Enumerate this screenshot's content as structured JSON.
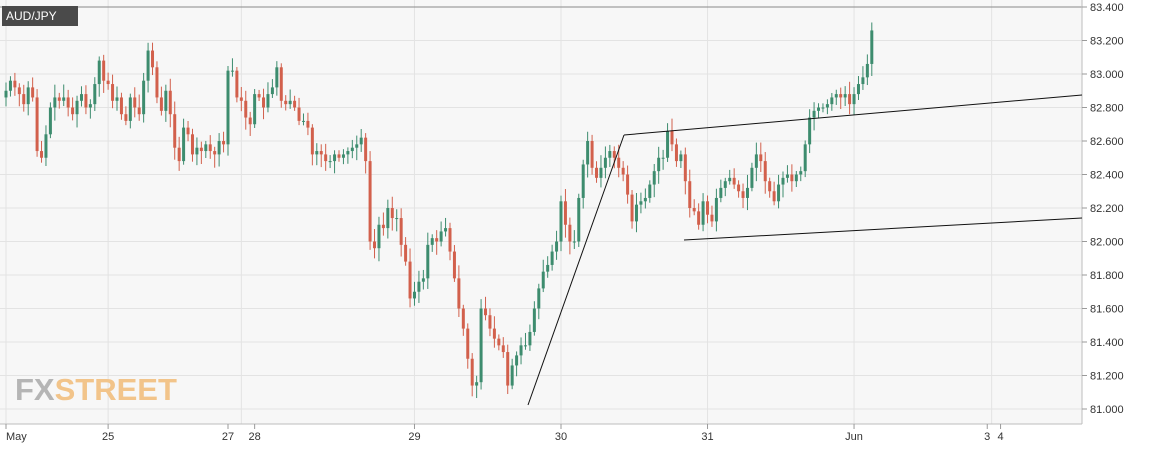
{
  "symbol": "AUD/JPY",
  "logo": {
    "part1": "FX",
    "part2": "STREET"
  },
  "colors": {
    "up": "#3d8c6e",
    "down": "#d2604c",
    "grid": "#e3e3e3",
    "plot_bg": "#f7f7f7",
    "axis_text": "#333333",
    "trend": "#111111"
  },
  "chart_data": {
    "type": "candlestick",
    "title": "AUD/JPY",
    "x_tick_labels": [
      {
        "label": "May",
        "index": 0
      },
      {
        "label": "25",
        "index": 23
      },
      {
        "label": "27",
        "index": 50
      },
      {
        "label": "28",
        "index": 56
      },
      {
        "label": "29",
        "index": 92
      },
      {
        "label": "30",
        "index": 125
      },
      {
        "label": "31",
        "index": 158
      },
      {
        "label": "Jun",
        "index": 191
      },
      {
        "label": "3",
        "index": 221
      },
      {
        "label": "4",
        "index": 224
      }
    ],
    "y_ticks": [
      81.0,
      81.2,
      81.4,
      81.6,
      81.8,
      82.0,
      82.2,
      82.4,
      82.6,
      82.8,
      83.0,
      83.2,
      83.4
    ],
    "y_tick_labels": [
      "81.000",
      "81.200",
      "81.400",
      "81.600",
      "81.800",
      "82.000",
      "82.200",
      "82.400",
      "82.600",
      "82.800",
      "83.000",
      "83.200",
      "83.400"
    ],
    "ylim": [
      80.95,
      83.42
    ],
    "grid": true,
    "closes": [
      82.9,
      82.96,
      82.92,
      82.88,
      82.82,
      82.92,
      82.86,
      82.54,
      82.5,
      82.64,
      82.8,
      82.86,
      82.84,
      82.86,
      82.8,
      82.76,
      82.84,
      82.88,
      82.8,
      82.82,
      82.94,
      83.08,
      82.96,
      82.94,
      82.84,
      82.86,
      82.76,
      82.72,
      82.86,
      82.8,
      82.76,
      82.96,
      83.14,
      83.04,
      82.86,
      82.78,
      82.9,
      82.76,
      82.56,
      82.48,
      82.68,
      82.64,
      82.52,
      82.56,
      82.54,
      82.58,
      82.54,
      82.52,
      82.6,
      82.58,
      83.02,
      83.02,
      82.86,
      82.84,
      82.74,
      82.7,
      82.88,
      82.86,
      82.8,
      82.88,
      82.92,
      83.04,
      82.84,
      82.82,
      82.84,
      82.8,
      82.72,
      82.72,
      82.68,
      82.52,
      82.54,
      82.52,
      82.48,
      82.48,
      82.52,
      82.5,
      82.52,
      82.54,
      82.56,
      82.58,
      82.62,
      82.48,
      82.0,
      81.96,
      82.1,
      82.08,
      82.2,
      82.14,
      82.14,
      81.98,
      81.88,
      81.66,
      81.7,
      81.76,
      81.78,
      81.98,
      82.02,
      82.0,
      82.06,
      82.08,
      81.94,
      81.78,
      81.6,
      81.48,
      81.3,
      81.14,
      81.16,
      81.6,
      81.56,
      81.48,
      81.42,
      81.38,
      81.34,
      81.14,
      81.26,
      81.32,
      81.38,
      81.38,
      81.46,
      81.6,
      81.72,
      81.82,
      81.86,
      81.94,
      82.0,
      82.24,
      82.1,
      82.0,
      82.0,
      82.26,
      82.46,
      82.6,
      82.44,
      82.38,
      82.44,
      82.5,
      82.54,
      82.5,
      82.44,
      82.4,
      82.28,
      82.12,
      82.22,
      82.24,
      82.26,
      82.34,
      82.42,
      82.5,
      82.5,
      82.66,
      82.58,
      82.48,
      82.52,
      82.36,
      82.2,
      82.18,
      82.1,
      82.24,
      82.16,
      82.12,
      82.26,
      82.32,
      82.36,
      82.38,
      82.34,
      82.3,
      82.26,
      82.32,
      82.44,
      82.52,
      82.48,
      82.36,
      82.3,
      82.24,
      82.34,
      82.38,
      82.4,
      82.36,
      82.4,
      82.42,
      82.58,
      82.74,
      82.78,
      82.8,
      82.8,
      82.82,
      82.86,
      82.88,
      82.86,
      82.88,
      82.82,
      82.88,
      82.94,
      82.98,
      83.06,
      83.26
    ]
  }
}
